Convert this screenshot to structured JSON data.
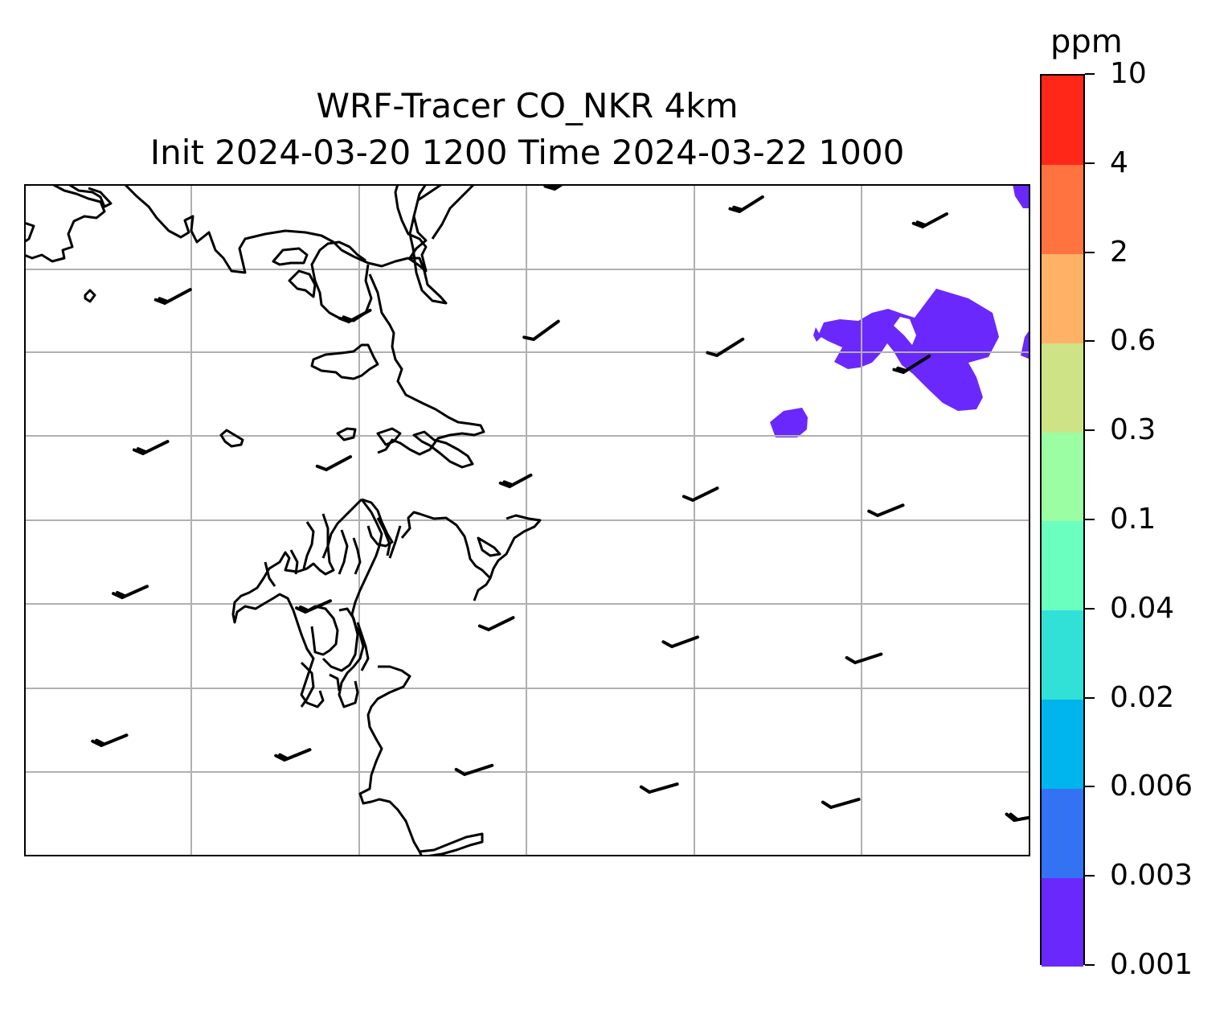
{
  "title": {
    "line1": "WRF-Tracer CO_NKR 4km",
    "line2": "Init 2024-03-20 1200 Time 2024-03-22 1000"
  },
  "colorbar": {
    "unit": "ppm",
    "tick_labels": [
      "0.001",
      "0.003",
      "0.006",
      "0.02",
      "0.04",
      "0.1",
      "0.3",
      "0.6",
      "2",
      "4",
      "10"
    ],
    "colors": [
      "#6a28fc",
      "#3472f4",
      "#00b4ec",
      "#31e0d6",
      "#6bffbf",
      "#9cfea2",
      "#cee386",
      "#ffb166",
      "#ff7340",
      "#ff2818"
    ]
  },
  "map": {
    "gridline_color": "#b0b0b0",
    "coastline_color": "#000000",
    "concentration_color": "#6a28fc",
    "wind_barbs_description": "westerly/south-westerly light winds"
  }
}
